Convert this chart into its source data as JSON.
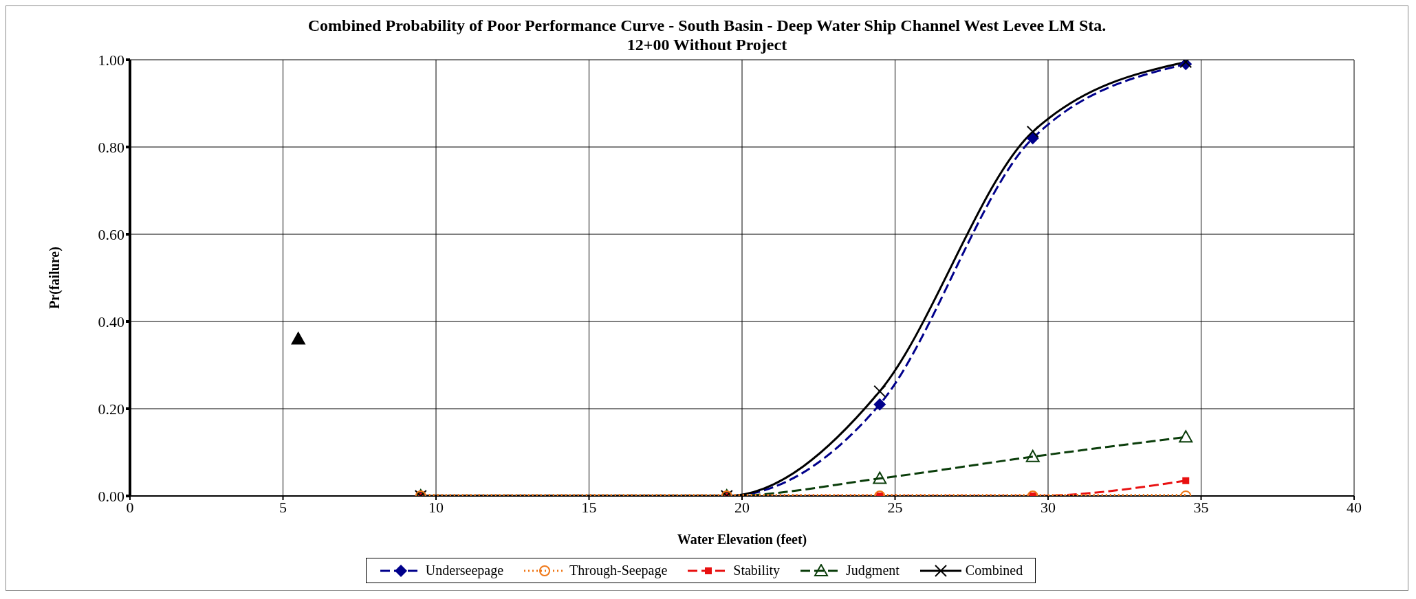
{
  "chart_data": {
    "type": "line",
    "title": "Combined Probability of Poor Performance Curve - South Basin - Deep Water Ship Channel West Levee LM Sta. 12+00 Without Project",
    "xlabel": "Water Elevation (feet)",
    "ylabel": "Pr(failure)",
    "x": [
      9.5,
      19.5,
      24.5,
      29.5,
      34.5
    ],
    "series": [
      {
        "name": "Underseepage",
        "color": "#00008b",
        "values": [
          0,
          0,
          0.21,
          0.82,
          0.99
        ],
        "marker": "diamond",
        "line_style": "dashed"
      },
      {
        "name": "Through-Seepage",
        "color": "#f07818",
        "values": [
          0,
          0,
          0,
          0,
          0
        ],
        "marker": "circle",
        "line_style": "dotted"
      },
      {
        "name": "Stability",
        "color": "#e81010",
        "values": [
          0,
          0,
          0,
          0,
          0.035
        ],
        "marker": "square",
        "line_style": "dashed"
      },
      {
        "name": "Judgment",
        "color": "#0a3d0a",
        "values": [
          0,
          0,
          0.04,
          0.09,
          0.135
        ],
        "marker": "triangle",
        "line_style": "dashed"
      },
      {
        "name": "Combined",
        "color": "#000000",
        "values": [
          0,
          0,
          0.24,
          0.835,
          0.995
        ],
        "marker": "cross",
        "line_style": "solid"
      },
      {
        "type": "scatter",
        "color": "#000000",
        "x": [
          5.5
        ],
        "values": [
          0.36
        ],
        "marker": "triangle"
      }
    ],
    "xlim": [
      0,
      40
    ],
    "xticks": [
      0,
      5,
      10,
      15,
      20,
      25,
      30,
      35,
      40
    ],
    "ylim": [
      0,
      1
    ],
    "yticks": [
      {
        "value": 0,
        "label": "0.00"
      },
      {
        "value": 0.2,
        "label": "0.20"
      },
      {
        "value": 0.4,
        "label": "0.40"
      },
      {
        "value": 0.6,
        "label": "0.60"
      },
      {
        "value": 0.8,
        "label": "0.80"
      },
      {
        "value": 1,
        "label": "1.00"
      }
    ],
    "grid": true,
    "legend": "bottom"
  }
}
